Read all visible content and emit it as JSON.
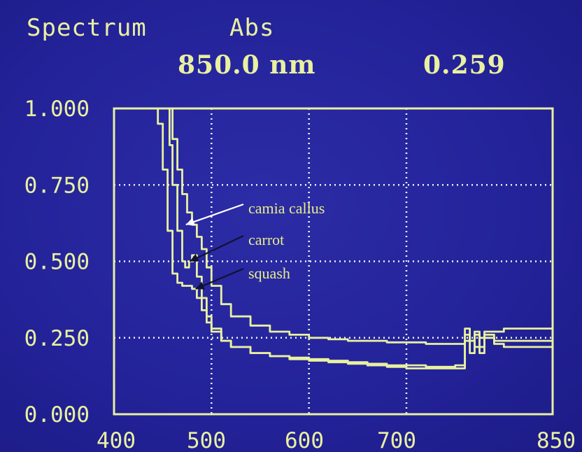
{
  "header": {
    "mode": "Spectrum",
    "measure": "Abs",
    "wavelength": "850.0 nm",
    "reading": "0.259"
  },
  "colors": {
    "background": "#24239a",
    "trace": "#e8f0a0",
    "grid": "#f2f2f2",
    "annotation_text": "#e6ee88",
    "arrow_white": "#ffffff",
    "arrow_dark": "#111133"
  },
  "chart_data": {
    "type": "line",
    "title": "",
    "xlabel": "",
    "ylabel": "",
    "xlim": [
      400,
      850
    ],
    "ylim": [
      0,
      1
    ],
    "grid": true,
    "x_ticks": [
      "400",
      "500",
      "600",
      "700",
      "850"
    ],
    "y_ticks": [
      "1.000",
      "0.750",
      "0.500",
      "0.250",
      "0.000"
    ],
    "series": [
      {
        "name": "camia callus",
        "x": [
          448,
          455,
          460,
          465,
          470,
          475,
          480,
          485,
          490,
          495,
          500,
          510,
          520,
          540,
          560,
          580,
          600,
          620,
          640,
          660,
          680,
          700,
          720,
          750,
          760,
          765,
          770,
          775,
          780,
          790,
          800,
          850
        ],
        "y": [
          1.0,
          1.0,
          0.9,
          0.8,
          0.72,
          0.66,
          0.62,
          0.58,
          0.54,
          0.48,
          0.42,
          0.36,
          0.32,
          0.29,
          0.27,
          0.26,
          0.25,
          0.245,
          0.24,
          0.24,
          0.235,
          0.235,
          0.23,
          0.23,
          0.26,
          0.24,
          0.26,
          0.25,
          0.27,
          0.27,
          0.28,
          0.28
        ]
      },
      {
        "name": "carrot",
        "x": [
          448,
          452,
          457,
          460,
          465,
          470,
          473,
          477,
          480,
          485,
          490,
          495,
          500,
          510,
          520,
          540,
          560,
          580,
          600,
          620,
          640,
          660,
          680,
          700,
          720,
          750,
          760,
          765,
          770,
          775,
          780,
          790,
          800,
          850
        ],
        "y": [
          1.0,
          1.0,
          0.88,
          0.75,
          0.6,
          0.5,
          0.48,
          0.5,
          0.52,
          0.45,
          0.38,
          0.32,
          0.28,
          0.24,
          0.22,
          0.2,
          0.19,
          0.185,
          0.18,
          0.175,
          0.17,
          0.165,
          0.16,
          0.16,
          0.155,
          0.16,
          0.28,
          0.2,
          0.27,
          0.2,
          0.26,
          0.24,
          0.24,
          0.24
        ]
      },
      {
        "name": "squash",
        "x": [
          440,
          445,
          450,
          455,
          460,
          465,
          470,
          475,
          480,
          485,
          490,
          495,
          500,
          510,
          520,
          540,
          560,
          580,
          600,
          620,
          640,
          660,
          680,
          700,
          720,
          750,
          760,
          770,
          780,
          790,
          800,
          850
        ],
        "y": [
          1.0,
          0.95,
          0.8,
          0.6,
          0.46,
          0.43,
          0.42,
          0.42,
          0.41,
          0.38,
          0.34,
          0.3,
          0.27,
          0.24,
          0.22,
          0.2,
          0.19,
          0.18,
          0.175,
          0.17,
          0.165,
          0.16,
          0.155,
          0.15,
          0.15,
          0.15,
          0.24,
          0.22,
          0.25,
          0.23,
          0.22,
          0.22
        ]
      }
    ],
    "annotations": [
      {
        "text": "camia callus",
        "arrow_color": "#ffffff",
        "target_x": 468,
        "target_y": 0.62
      },
      {
        "text": "carrot",
        "arrow_color": "#111133",
        "target_x": 472,
        "target_y": 0.5
      },
      {
        "text": "squash",
        "arrow_color": "#111133",
        "target_x": 478,
        "target_y": 0.41
      }
    ]
  }
}
